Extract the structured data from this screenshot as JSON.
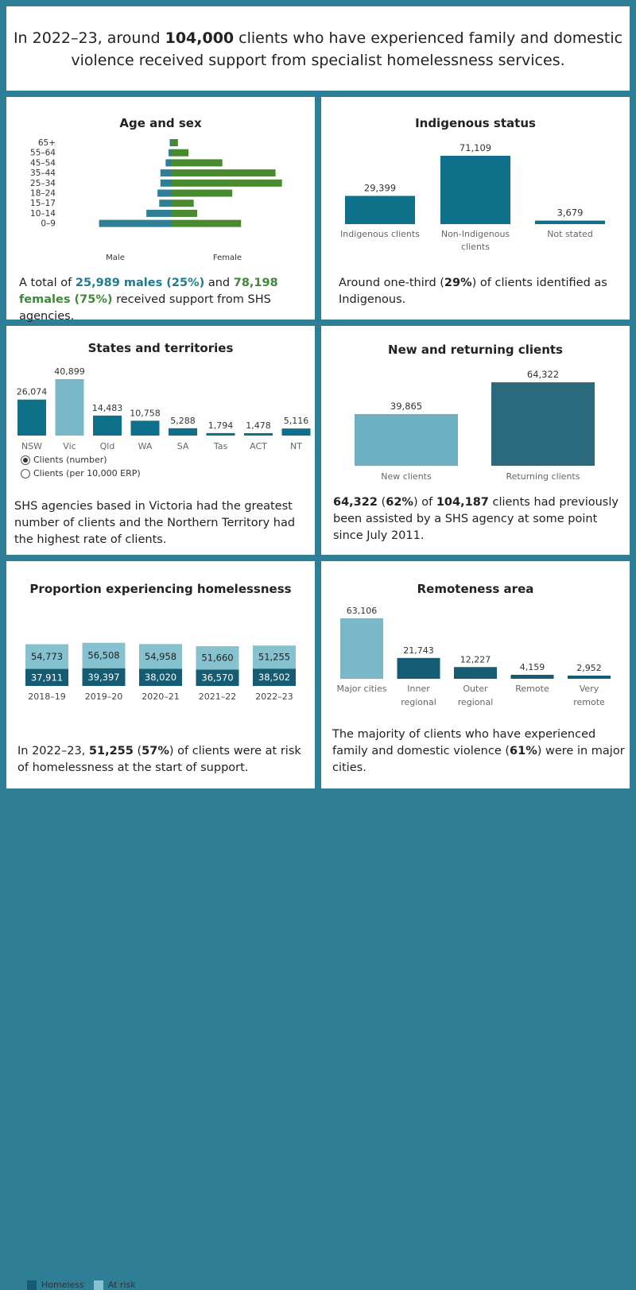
{
  "header": {
    "pre": "In 2022–23, around ",
    "bold": "104,000",
    "post": " clients who have experienced family and domestic violence received support from specialist homelessness services."
  },
  "colors": {
    "male": "#2e7f96",
    "female": "#4a8a2e",
    "teal_dark": "#0e7189",
    "teal_light": "#7ab8c8",
    "homeless": "#155b74",
    "at_risk": "#86c1cf",
    "returning": "#2b6a7c",
    "new": "#6db0c2"
  },
  "age_sex": {
    "title": "Age and sex",
    "male_label": "Male",
    "female_label": "Female",
    "text_pre": "A total of ",
    "text_male": "25,989 males (25%)",
    "text_mid": " and ",
    "text_female": "78,198 females (75%)",
    "text_post": " received support from SHS agencies."
  },
  "indigenous": {
    "title": "Indigenous status",
    "text_pre": "Around one-third  (",
    "text_bold": "29%",
    "text_post": ") of clients identified as Indigenous."
  },
  "states": {
    "title": "States and territories",
    "radio_number": "Clients (number)",
    "radio_rate": "Clients (per 10,000 ERP)",
    "text": "SHS agencies based in Victoria had the greatest number of clients and the Northern Territory had the highest rate of clients."
  },
  "new_returning": {
    "title": "New and returning clients",
    "text_b1": "64,322",
    "text_1": " (",
    "text_b2": "62%",
    "text_2": ") of ",
    "text_b3": "104,187",
    "text_3": " clients had previously been assisted by a SHS agency at some point since July 2011."
  },
  "homelessness": {
    "title": "Proportion experiencing homelessness",
    "legend_homeless": "Homeless",
    "legend_at_risk": "At risk",
    "text_pre": "In 2022–23, ",
    "text_b1": "51,255",
    "text_mid": " (",
    "text_b2": "57%",
    "text_post": ") of clients were at risk of homelessness at the start of support."
  },
  "remoteness": {
    "title": "Remoteness area",
    "text_pre": "The majority of clients who have experienced family and domestic violence (",
    "text_bold": "61%",
    "text_post": ") were in major cities."
  },
  "chart_data": [
    {
      "id": "age_sex",
      "type": "bar",
      "orientation": "horizontal",
      "categories": [
        "65+",
        "55–64",
        "45–54",
        "35–44",
        "25–34",
        "18–24",
        "15–17",
        "10–14",
        "0–9"
      ],
      "series": [
        {
          "name": "Male",
          "values": [
            200,
            400,
            900,
            1800,
            1800,
            2300,
            2000,
            4200,
            12300
          ]
        },
        {
          "name": "Female",
          "values": [
            1200,
            3000,
            8800,
            17900,
            19000,
            10500,
            3900,
            4500,
            12000
          ]
        }
      ],
      "title": "Age and sex"
    },
    {
      "id": "indigenous",
      "type": "bar",
      "categories": [
        "Indigenous clients",
        "Non-Indigenous clients",
        "Not stated"
      ],
      "values": [
        29399,
        71109,
        3679
      ],
      "labels": [
        "29,399",
        "71,109",
        "3,679"
      ],
      "title": "Indigenous status"
    },
    {
      "id": "states",
      "type": "bar",
      "categories": [
        "NSW",
        "Vic",
        "Qld",
        "WA",
        "SA",
        "Tas",
        "ACT",
        "NT"
      ],
      "values": [
        26074,
        40899,
        14483,
        10758,
        5288,
        1794,
        1478,
        5116
      ],
      "labels": [
        "26,074",
        "40,899",
        "14,483",
        "10,758",
        "5,288",
        "1,794",
        "1,478",
        "5,116"
      ],
      "highlight": "Vic",
      "title": "States and territories"
    },
    {
      "id": "new_returning",
      "type": "bar",
      "categories": [
        "New clients",
        "Returning clients"
      ],
      "values": [
        39865,
        64322
      ],
      "labels": [
        "39,865",
        "64,322"
      ],
      "title": "New and returning clients"
    },
    {
      "id": "homelessness",
      "type": "bar",
      "stacked": true,
      "categories": [
        "2018–19",
        "2019–20",
        "2020–21",
        "2021–22",
        "2022–23"
      ],
      "series": [
        {
          "name": "Homeless",
          "values": [
            37911,
            39397,
            38020,
            36570,
            38502
          ],
          "labels": [
            "37,911",
            "39,397",
            "38,020",
            "36,570",
            "38,502"
          ]
        },
        {
          "name": "At risk",
          "values": [
            54773,
            56508,
            54958,
            51660,
            51255
          ],
          "labels": [
            "54,773",
            "56,508",
            "54,958",
            "51,660",
            "51,255"
          ]
        }
      ],
      "title": "Proportion experiencing homelessness"
    },
    {
      "id": "remoteness",
      "type": "bar",
      "categories": [
        "Major cities",
        "Inner regional",
        "Outer regional",
        "Remote",
        "Very remote"
      ],
      "category_lines": [
        [
          "Major cities"
        ],
        [
          "Inner",
          "regional"
        ],
        [
          "Outer",
          "regional"
        ],
        [
          "Remote"
        ],
        [
          "Very",
          "remote"
        ]
      ],
      "values": [
        63106,
        21743,
        12227,
        4159,
        2952
      ],
      "labels": [
        "63,106",
        "21,743",
        "12,227",
        "4,159",
        "2,952"
      ],
      "title": "Remoteness area"
    }
  ]
}
